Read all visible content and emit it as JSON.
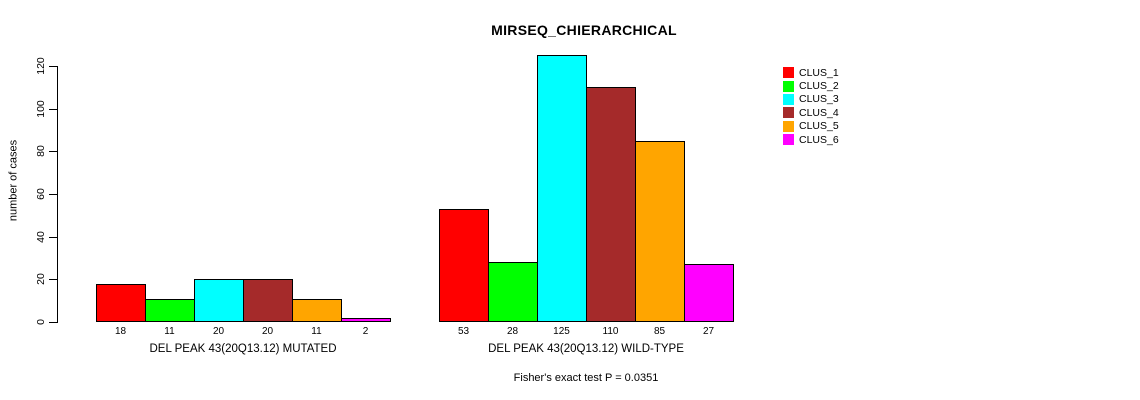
{
  "chart_data": {
    "type": "bar",
    "title": "MIRSEQ_CHIERARCHICAL",
    "ylabel": "number of cases",
    "xlabel": "",
    "footnote": "Fisher's exact test P = 0.0351",
    "ylim": [
      0,
      120
    ],
    "yticks": [
      0,
      20,
      40,
      60,
      80,
      100,
      120
    ],
    "grid": false,
    "legend_position": "right",
    "series": [
      {
        "name": "CLUS_1",
        "color": "#FF0000"
      },
      {
        "name": "CLUS_2",
        "color": "#00FF00"
      },
      {
        "name": "CLUS_3",
        "color": "#00FFFF"
      },
      {
        "name": "CLUS_4",
        "color": "#A52A2A"
      },
      {
        "name": "CLUS_5",
        "color": "#FFA500"
      },
      {
        "name": "CLUS_6",
        "color": "#FF00FF"
      }
    ],
    "groups": [
      {
        "label": "DEL PEAK 43(20Q13.12) MUTATED",
        "values": [
          18,
          11,
          20,
          20,
          11,
          2
        ]
      },
      {
        "label": "DEL PEAK 43(20Q13.12) WILD-TYPE",
        "values": [
          53,
          28,
          125,
          110,
          85,
          27
        ]
      }
    ]
  }
}
